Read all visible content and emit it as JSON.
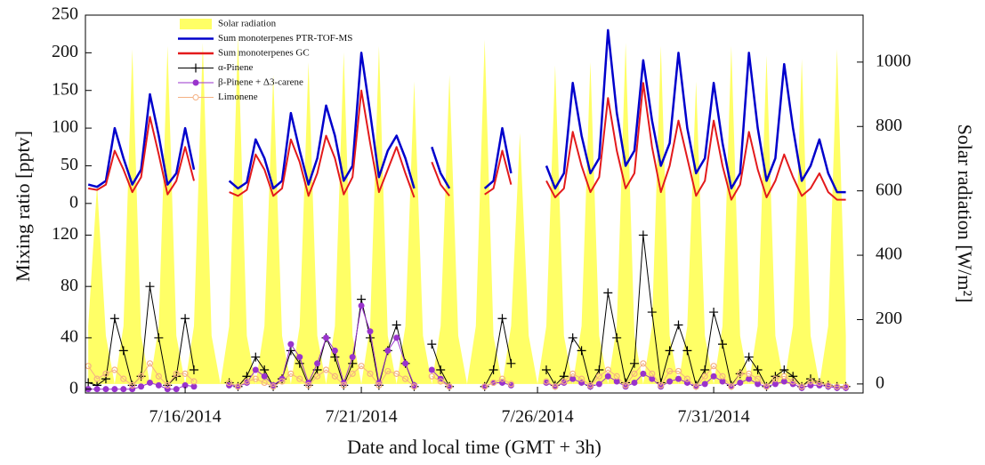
{
  "chart_data": [
    {
      "type": "line",
      "xlabel": "Date and local time (GMT + 3h)",
      "ylabel": "Mixing ratio [pptv]",
      "y2label": "Solar radiation [W/m²]",
      "legend": "upper left",
      "x": [
        13.25,
        13.5,
        13.75,
        14,
        14.25,
        14.5,
        14.75,
        15,
        15.25,
        15.5,
        15.75,
        16,
        16.25,
        16.5,
        16.75,
        17,
        17.25,
        17.5,
        17.75,
        18,
        18.25,
        18.5,
        18.75,
        19,
        19.25,
        19.5,
        19.75,
        20,
        20.25,
        20.5,
        20.75,
        21,
        21.25,
        21.5,
        21.75,
        22,
        22.25,
        22.5,
        22.75,
        23,
        23.25,
        23.5,
        23.75,
        24,
        24.25,
        24.5,
        24.75,
        25,
        25.25,
        25.5,
        25.75,
        26,
        26.25,
        26.5,
        26.75,
        27,
        27.25,
        27.5,
        27.75,
        28,
        28.25,
        28.5,
        28.75,
        29,
        29.25,
        29.5,
        29.75,
        30,
        30.25,
        30.5,
        30.75,
        31,
        31.25,
        31.5,
        31.75,
        32,
        32.25,
        32.5,
        32.75,
        33,
        33.25,
        33.5,
        33.75,
        34,
        34.25,
        34.5,
        34.75
      ],
      "xlim": [
        13.17,
        35.24
      ],
      "xticks": [
        {
          "value": 16,
          "label": "7/16/2014"
        },
        {
          "value": 21,
          "label": "7/21/2014"
        },
        {
          "value": 26,
          "label": "7/26/2014"
        },
        {
          "value": 31,
          "label": "7/31/2014"
        }
      ],
      "ylim": [
        -25,
        250
      ],
      "yticks": [
        0,
        50,
        100,
        150,
        200,
        250
      ],
      "y2lim": [
        -28,
        1146
      ],
      "y2ticks": [
        0,
        200,
        400,
        600,
        800,
        1000
      ],
      "series": [
        {
          "name": "Solar radiation",
          "color": "#ffff66",
          "style": "area",
          "axis": "y2",
          "values": [
            180,
            620,
            150,
            0,
            180,
            1040,
            150,
            0,
            180,
            1050,
            150,
            0,
            180,
            1060,
            150,
            0,
            180,
            1080,
            150,
            0,
            180,
            960,
            150,
            0,
            180,
            1000,
            150,
            0,
            180,
            1030,
            150,
            0,
            180,
            1050,
            150,
            0,
            180,
            940,
            150,
            0,
            180,
            960,
            150,
            0,
            180,
            1070,
            150,
            0,
            180,
            780,
            150,
            0,
            180,
            990,
            150,
            0,
            180,
            1000,
            150,
            0,
            180,
            1060,
            150,
            0,
            180,
            1050,
            150,
            0,
            180,
            940,
            150,
            0,
            180,
            1050,
            150,
            0,
            180,
            1020,
            150,
            0,
            180,
            1010,
            150,
            0,
            180,
            1040,
            150
          ]
        },
        {
          "name": "Sum monoterpenes PTR-TOF-MS",
          "color": "#0000cc",
          "style": "line",
          "values": [
            25,
            22,
            30,
            100,
            60,
            25,
            45,
            145,
            90,
            25,
            40,
            100,
            45,
            null,
            null,
            null,
            30,
            20,
            28,
            85,
            60,
            20,
            30,
            120,
            70,
            25,
            60,
            130,
            90,
            30,
            50,
            200,
            120,
            35,
            70,
            90,
            60,
            20,
            null,
            75,
            40,
            20,
            null,
            null,
            null,
            20,
            30,
            100,
            40,
            null,
            null,
            null,
            50,
            20,
            40,
            160,
            90,
            40,
            60,
            230,
            120,
            50,
            70,
            190,
            110,
            50,
            80,
            200,
            100,
            40,
            60,
            160,
            80,
            20,
            40,
            200,
            100,
            30,
            60,
            185,
            100,
            30,
            50,
            85,
            40,
            15,
            15
          ]
        },
        {
          "name": "Sum monoterpenes GC",
          "color": "#e31a1c",
          "style": "line",
          "values": [
            20,
            18,
            25,
            70,
            45,
            15,
            35,
            115,
            65,
            12,
            30,
            75,
            30,
            null,
            null,
            null,
            15,
            10,
            18,
            65,
            45,
            10,
            20,
            85,
            55,
            10,
            40,
            90,
            60,
            12,
            35,
            150,
            80,
            15,
            45,
            75,
            40,
            8,
            null,
            55,
            25,
            10,
            null,
            null,
            null,
            12,
            20,
            70,
            25,
            null,
            null,
            null,
            30,
            8,
            20,
            95,
            50,
            15,
            35,
            140,
            70,
            20,
            40,
            160,
            75,
            15,
            50,
            110,
            60,
            10,
            30,
            110,
            50,
            5,
            25,
            95,
            45,
            8,
            30,
            65,
            35,
            10,
            20,
            40,
            15,
            5,
            5
          ]
        }
      ]
    },
    {
      "type": "line",
      "x": [
        13.25,
        13.5,
        13.75,
        14,
        14.25,
        14.5,
        14.75,
        15,
        15.25,
        15.5,
        15.75,
        16,
        16.25,
        16.5,
        16.75,
        17,
        17.25,
        17.5,
        17.75,
        18,
        18.25,
        18.5,
        18.75,
        19,
        19.25,
        19.5,
        19.75,
        20,
        20.25,
        20.5,
        20.75,
        21,
        21.25,
        21.5,
        21.75,
        22,
        22.25,
        22.5,
        22.75,
        23,
        23.25,
        23.5,
        23.75,
        24,
        24.25,
        24.5,
        24.75,
        25,
        25.25,
        25.5,
        25.75,
        26,
        26.25,
        26.5,
        26.75,
        27,
        27.25,
        27.5,
        27.75,
        28,
        28.25,
        28.5,
        28.75,
        29,
        29.25,
        29.5,
        29.75,
        30,
        30.25,
        30.5,
        30.75,
        31,
        31.25,
        31.5,
        31.75,
        32,
        32.25,
        32.5,
        32.75,
        33,
        33.25,
        33.5,
        33.75,
        34,
        34.25,
        34.5,
        34.75
      ],
      "ylim": [
        -3,
        130
      ],
      "yticks": [
        0,
        40,
        80,
        120
      ],
      "series": [
        {
          "name": "α-Pinene",
          "color": "#000000",
          "marker": "plus",
          "values": [
            5,
            3,
            8,
            55,
            30,
            3,
            10,
            80,
            40,
            3,
            10,
            55,
            15,
            null,
            null,
            null,
            5,
            2,
            10,
            25,
            15,
            2,
            8,
            30,
            20,
            3,
            15,
            40,
            25,
            3,
            20,
            70,
            40,
            3,
            30,
            50,
            20,
            2,
            null,
            35,
            15,
            2,
            null,
            null,
            null,
            2,
            15,
            55,
            20,
            null,
            null,
            null,
            15,
            3,
            10,
            40,
            30,
            3,
            15,
            75,
            40,
            5,
            20,
            120,
            60,
            5,
            30,
            50,
            30,
            3,
            15,
            60,
            35,
            3,
            12,
            25,
            15,
            2,
            10,
            15,
            10,
            2,
            8,
            5,
            3,
            2,
            2
          ]
        },
        {
          "name": "β-Pinene + Δ3-carene",
          "color": "#9933cc",
          "marker": "dot",
          "values": [
            0,
            0,
            0,
            0,
            0,
            0,
            2,
            5,
            3,
            0,
            0,
            3,
            2,
            null,
            null,
            null,
            3,
            2,
            5,
            15,
            10,
            3,
            8,
            35,
            25,
            5,
            20,
            40,
            30,
            5,
            25,
            65,
            45,
            5,
            30,
            40,
            20,
            3,
            null,
            15,
            8,
            2,
            null,
            null,
            null,
            2,
            5,
            5,
            3,
            null,
            null,
            null,
            5,
            2,
            5,
            8,
            5,
            2,
            4,
            10,
            6,
            2,
            5,
            12,
            8,
            2,
            6,
            8,
            5,
            2,
            4,
            10,
            6,
            2,
            5,
            8,
            4,
            2,
            4,
            6,
            4,
            1,
            3,
            3,
            2,
            1,
            1
          ]
        },
        {
          "name": "Limonene",
          "color": "#f4b183",
          "marker": "ring",
          "values": [
            18,
            8,
            12,
            15,
            8,
            3,
            10,
            20,
            10,
            3,
            12,
            12,
            6,
            null,
            null,
            null,
            5,
            2,
            6,
            8,
            5,
            2,
            6,
            12,
            8,
            3,
            10,
            15,
            10,
            3,
            12,
            18,
            12,
            3,
            14,
            12,
            8,
            2,
            null,
            10,
            6,
            2,
            null,
            null,
            null,
            2,
            5,
            8,
            4,
            null,
            null,
            null,
            6,
            2,
            6,
            12,
            8,
            3,
            10,
            15,
            10,
            3,
            12,
            20,
            12,
            3,
            14,
            14,
            8,
            2,
            10,
            18,
            10,
            2,
            12,
            12,
            8,
            2,
            8,
            10,
            6,
            2,
            6,
            5,
            3,
            2,
            2
          ]
        }
      ]
    }
  ]
}
